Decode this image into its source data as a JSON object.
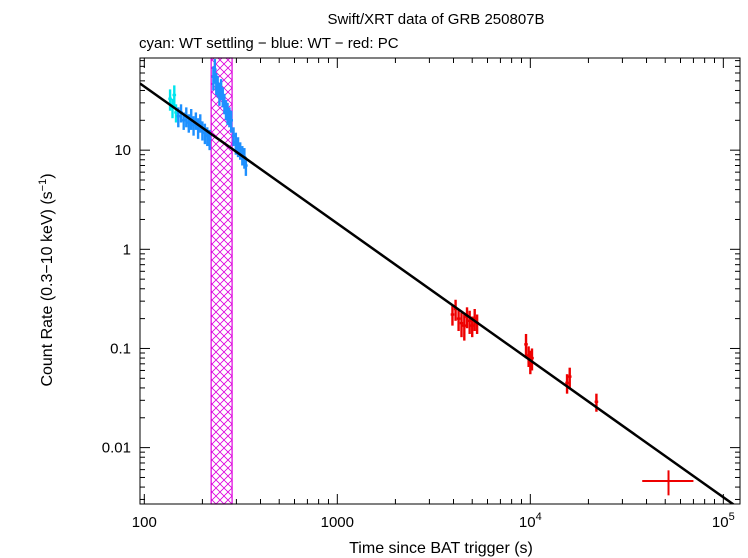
{
  "chart_data": {
    "type": "scatter",
    "title": "Swift/XRT data of GRB 250807B",
    "subtitle": "cyan: WT settling − blue: WT − red: PC",
    "xlabel": "Time since BAT trigger (s)",
    "ylabel_main": "Count Rate (0.3−10 keV) (s",
    "ylabel_sup": "−1",
    "ylabel_close": ")",
    "xscale": "log",
    "yscale": "log",
    "xlim": [
      95,
      122000
    ],
    "ylim": [
      0.0027,
      85
    ],
    "x_ticks": [
      {
        "value": 100,
        "base": "100",
        "exp": ""
      },
      {
        "value": 1000,
        "base": "1000",
        "exp": ""
      },
      {
        "value": 10000,
        "base": "10",
        "exp": "4"
      },
      {
        "value": 100000,
        "base": "10",
        "exp": "5"
      }
    ],
    "y_ticks": [
      {
        "value": 10,
        "label": "10"
      },
      {
        "value": 1,
        "label": "1"
      },
      {
        "value": 0.1,
        "label": "0.1"
      },
      {
        "value": 0.01,
        "label": "0.01"
      }
    ],
    "colors": {
      "wt_settling": "#00e5ee",
      "wt": "#1e90ff",
      "pc": "#ee0000",
      "model": "#000000",
      "band": "#dd00dd"
    },
    "model_line": {
      "x": [
        95,
        122000
      ],
      "y": [
        47,
        0.0024
      ]
    },
    "excluded_band": {
      "x_start": 222,
      "x_end": 285
    },
    "series": [
      {
        "name": "WT settling",
        "color_key": "wt_settling",
        "points": [
          [
            136,
            33,
            8
          ],
          [
            140,
            27,
            6
          ],
          [
            143,
            36,
            9
          ],
          [
            146,
            24,
            5
          ]
        ]
      },
      {
        "name": "WT",
        "color_key": "wt",
        "points": [
          [
            150,
            22,
            5
          ],
          [
            155,
            24,
            5
          ],
          [
            160,
            20,
            4
          ],
          [
            165,
            22,
            5
          ],
          [
            170,
            19,
            4
          ],
          [
            175,
            21,
            5
          ],
          [
            180,
            18,
            4
          ],
          [
            185,
            20,
            4
          ],
          [
            190,
            17,
            4
          ],
          [
            195,
            19,
            4
          ],
          [
            200,
            16,
            3.5
          ],
          [
            206,
            15,
            3.5
          ],
          [
            212,
            14,
            3
          ],
          [
            218,
            13,
            3
          ],
          [
            228,
            55,
            15
          ],
          [
            232,
            65,
            18
          ],
          [
            236,
            48,
            12
          ],
          [
            240,
            45,
            11
          ],
          [
            245,
            38,
            10
          ],
          [
            250,
            42,
            10
          ],
          [
            255,
            35,
            8
          ],
          [
            260,
            30,
            7
          ],
          [
            265,
            26,
            6
          ],
          [
            270,
            24,
            6
          ],
          [
            276,
            22,
            5
          ],
          [
            282,
            20,
            5
          ],
          [
            290,
            14,
            3
          ],
          [
            298,
            12,
            3
          ],
          [
            306,
            11,
            2.5
          ],
          [
            314,
            10,
            2
          ],
          [
            322,
            9,
            2
          ],
          [
            330,
            8.5,
            2
          ],
          [
            336,
            7,
            1.5
          ]
        ]
      },
      {
        "name": "PC",
        "color_key": "pc",
        "points": [
          [
            3950,
            0.22,
            0.05
          ],
          [
            4100,
            0.25,
            0.06
          ],
          [
            4250,
            0.2,
            0.05
          ],
          [
            4400,
            0.18,
            0.05
          ],
          [
            4550,
            0.17,
            0.05
          ],
          [
            4700,
            0.21,
            0.05
          ],
          [
            4850,
            0.19,
            0.05
          ],
          [
            5000,
            0.17,
            0.04
          ],
          [
            5150,
            0.2,
            0.05
          ],
          [
            5300,
            0.18,
            0.04
          ],
          [
            9500,
            0.11,
            0.03
          ],
          [
            9800,
            0.085,
            0.02
          ],
          [
            10000,
            0.075,
            0.02
          ],
          [
            10200,
            0.08,
            0.02
          ],
          [
            15500,
            0.045,
            0.01
          ],
          [
            16000,
            0.052,
            0.012
          ],
          [
            22000,
            0.029,
            0.006
          ],
          [
            52000,
            0.0046,
            0.0013
          ]
        ]
      }
    ],
    "last_point_xerr": [
      38000,
      70000
    ]
  }
}
